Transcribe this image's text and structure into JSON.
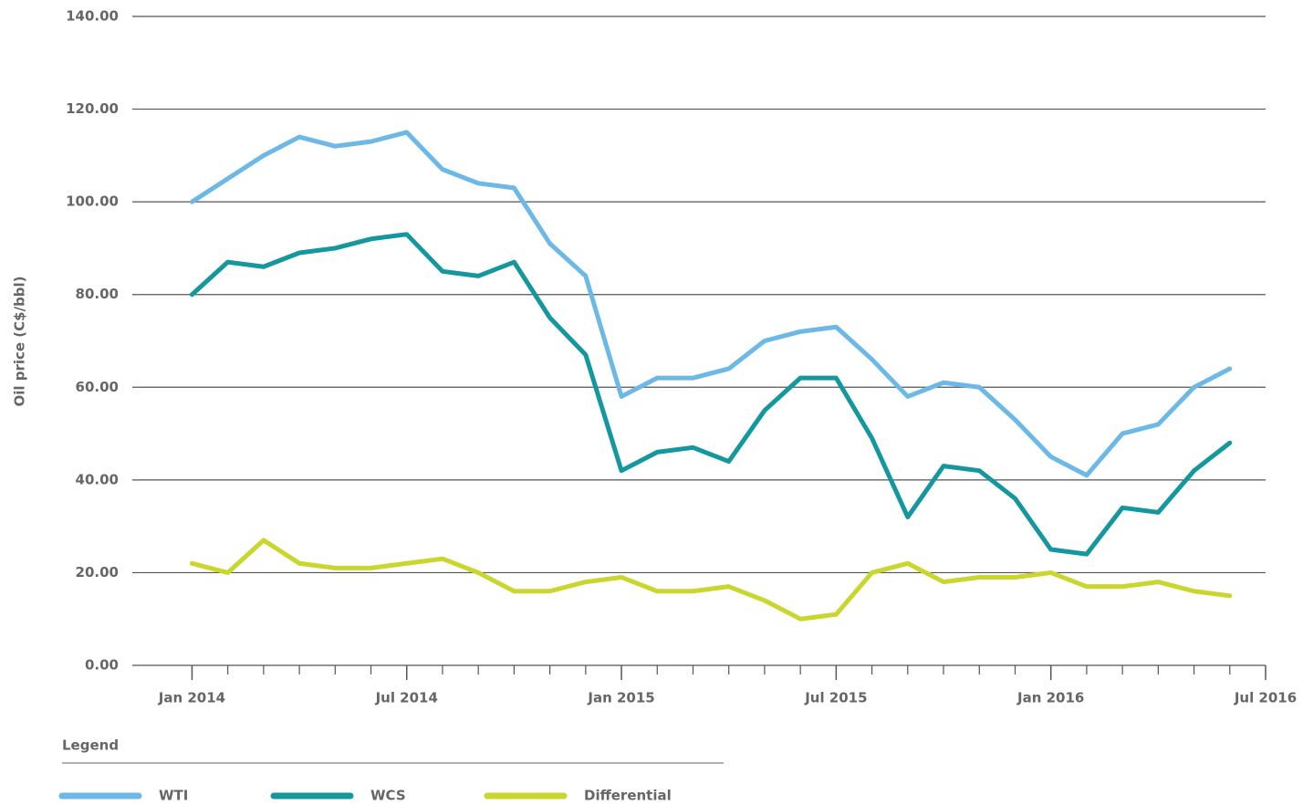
{
  "chart_data": {
    "type": "line",
    "ylabel": "Oil price (C$/bbl)",
    "legend_title": "Legend",
    "x": [
      "2014-01",
      "2014-02",
      "2014-03",
      "2014-04",
      "2014-05",
      "2014-06",
      "2014-07",
      "2014-08",
      "2014-09",
      "2014-10",
      "2014-11",
      "2014-12",
      "2015-01",
      "2015-02",
      "2015-03",
      "2015-04",
      "2015-05",
      "2015-06",
      "2015-07",
      "2015-08",
      "2015-09",
      "2015-10",
      "2015-11",
      "2015-12",
      "2016-01",
      "2016-02",
      "2016-03",
      "2016-04",
      "2016-05",
      "2016-06"
    ],
    "series": [
      {
        "name": "WTI",
        "color": "#6cb8e6",
        "values": [
          100,
          105,
          110,
          114,
          112,
          113,
          115,
          107,
          104,
          103,
          91,
          84,
          58,
          62,
          62,
          64,
          70,
          72,
          73,
          66,
          58,
          61,
          60,
          53,
          45,
          41,
          50,
          52,
          60,
          64
        ]
      },
      {
        "name": "WCS",
        "color": "#14979e",
        "values": [
          80,
          87,
          86,
          89,
          90,
          92,
          93,
          85,
          84,
          87,
          75,
          67,
          42,
          46,
          47,
          44,
          55,
          62,
          62,
          49,
          32,
          43,
          42,
          36,
          25,
          24,
          34,
          33,
          42,
          48
        ]
      },
      {
        "name": "Differential",
        "color": "#c9d62d",
        "values": [
          22,
          20,
          27,
          22,
          21,
          21,
          22,
          23,
          20,
          16,
          16,
          18,
          19,
          16,
          16,
          17,
          14,
          10,
          11,
          20,
          22,
          18,
          19,
          19,
          20,
          17,
          17,
          18,
          16,
          15
        ]
      }
    ],
    "xlim": [
      "2013-11",
      "2016-07"
    ],
    "xticks": [
      {
        "value": "2014-01",
        "label": "Jan 2014"
      },
      {
        "value": "2014-07",
        "label": "Jul 2014"
      },
      {
        "value": "2015-01",
        "label": "Jan 2015"
      },
      {
        "value": "2015-07",
        "label": "Jul 2015"
      },
      {
        "value": "2016-01",
        "label": "Jan 2016"
      },
      {
        "value": "2016-07",
        "label": "Jul 2016"
      }
    ],
    "xminor": [
      "2014-02",
      "2014-03",
      "2014-04",
      "2014-05",
      "2014-06",
      "2014-08",
      "2014-09",
      "2014-10",
      "2014-11",
      "2014-12",
      "2015-02",
      "2015-03",
      "2015-04",
      "2015-05",
      "2015-06",
      "2015-08",
      "2015-09",
      "2015-10",
      "2015-11",
      "2015-12",
      "2016-02",
      "2016-03",
      "2016-04",
      "2016-05",
      "2016-06"
    ],
    "ylim": [
      0,
      140
    ],
    "yticks": [
      {
        "value": 0,
        "label": "0.00"
      },
      {
        "value": 20,
        "label": "20.00"
      },
      {
        "value": 40,
        "label": "40.00"
      },
      {
        "value": 60,
        "label": "60.00"
      },
      {
        "value": 80,
        "label": "80.00"
      },
      {
        "value": 100,
        "label": "100.00"
      },
      {
        "value": 120,
        "label": "120.00"
      },
      {
        "value": 140,
        "label": "140.00"
      }
    ],
    "grid": true
  }
}
